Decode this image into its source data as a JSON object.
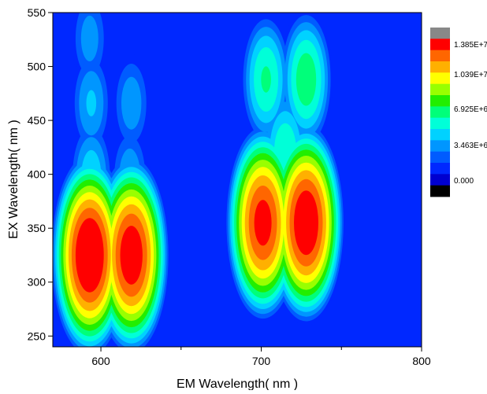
{
  "chart_data": {
    "type": "heatmap",
    "subtype": "filled-contour",
    "xlabel": "EM Wavelength( nm )",
    "ylabel": "EX Wavelength( nm )",
    "xlim": [
      570,
      800
    ],
    "ylim": [
      240,
      550
    ],
    "x_ticks": [
      600,
      700,
      800
    ],
    "x_minor_ticks": [
      650,
      750
    ],
    "y_ticks": [
      250,
      300,
      350,
      400,
      450,
      500,
      550
    ],
    "colorbar": {
      "labels": [
        "1.385E+7",
        "1.039E+7",
        "6.925E+6",
        "3.463E+6",
        "0.000"
      ],
      "levels": 13,
      "colors": [
        "#000000",
        "#0000d0",
        "#0028ff",
        "#005cff",
        "#0096ff",
        "#00d2ff",
        "#00ffd8",
        "#00ff7a",
        "#22ee00",
        "#99ff00",
        "#ffff00",
        "#ffb000",
        "#ff6600",
        "#ff0000",
        "#888888"
      ]
    },
    "background_value": 1.2,
    "peaks": [
      {
        "x": 593,
        "y": 325,
        "value": 13.6
      },
      {
        "x": 619,
        "y": 325,
        "value": 13.0
      },
      {
        "x": 701,
        "y": 355,
        "value": 12.6
      },
      {
        "x": 728,
        "y": 355,
        "value": 13.2
      },
      {
        "x": 703,
        "y": 488,
        "value": 6.2
      },
      {
        "x": 728,
        "y": 488,
        "value": 6.8
      },
      {
        "x": 715,
        "y": 420,
        "value": 6.0
      },
      {
        "x": 594,
        "y": 398,
        "value": 4.8
      },
      {
        "x": 618,
        "y": 398,
        "value": 3.9
      },
      {
        "x": 594,
        "y": 466,
        "value": 4.2
      },
      {
        "x": 619,
        "y": 466,
        "value": 3.8
      },
      {
        "x": 593,
        "y": 526,
        "value": 3.6
      }
    ]
  }
}
